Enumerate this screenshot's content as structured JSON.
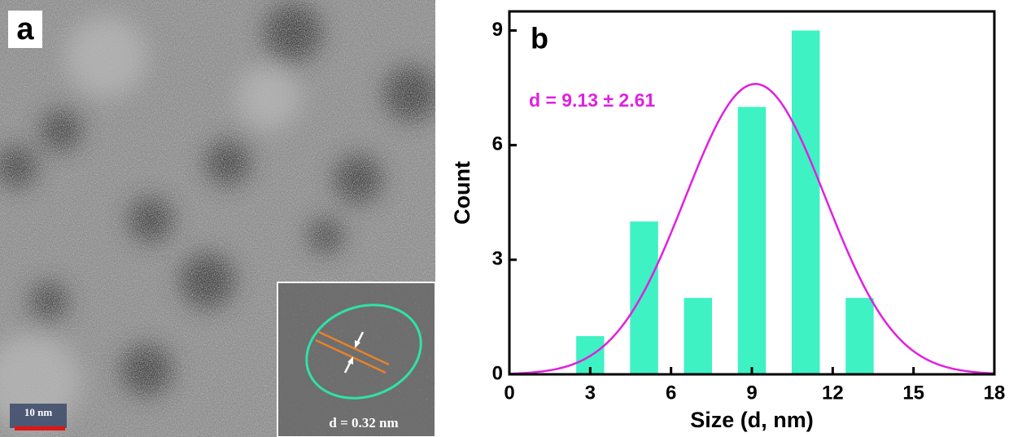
{
  "image_panel": {
    "label": "a",
    "scale_bar": "10 nm",
    "inset_label": "d = 0.32 nm"
  },
  "chart_data": {
    "type": "bar",
    "panel_label": "b",
    "annotation": "d = 9.13 ± 2.61",
    "x_label": "Size (d, nm)",
    "y_label": "Count",
    "x": [
      3,
      5,
      7,
      9,
      11,
      13
    ],
    "values": [
      1,
      4,
      2,
      7,
      9,
      2
    ],
    "color": "#3ef2c4",
    "xlim": [
      0,
      18
    ],
    "xticks": [
      0,
      3,
      6,
      9,
      12,
      15,
      18
    ],
    "ylim": [
      0,
      9.5
    ],
    "yticks": [
      0,
      3,
      6,
      9
    ],
    "fit": {
      "color": "#e020e0",
      "center": 9.13,
      "width": 2.61,
      "amplitude": 7.6
    }
  }
}
